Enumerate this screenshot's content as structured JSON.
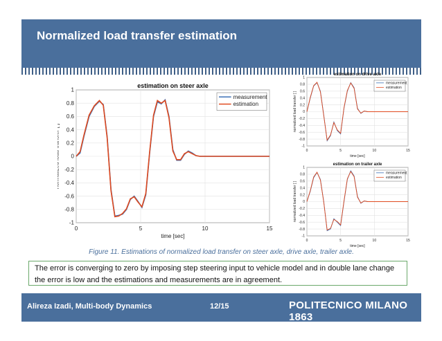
{
  "slide": {
    "title": "Normalized load transfer estimation",
    "caption": "Figure 11. Estimations of normalized load transfer on steer axle, drive axle, trailer axle.",
    "body_text": "The error is converging to zero by imposing step steering input to vehicle model and in double lane change the error is low and the estimations and measurements are in agreement.",
    "footer": {
      "author": "Alireza Izadi, Multi-body Dynamics",
      "page": "12/15",
      "logo": "POLITECNICO MILANO 1863"
    },
    "colors": {
      "header": "#4a6f9c",
      "measurement": "#3b6fb6",
      "estimation": "#e04a1f"
    }
  },
  "chart_data": [
    {
      "type": "line",
      "title": "estimation on steer axle",
      "xlabel": "time [sec]",
      "ylabel": "normalized load transfer [ ]",
      "xlim": [
        0,
        15
      ],
      "ylim": [
        -1,
        1
      ],
      "xticks": [
        0,
        5,
        10,
        15
      ],
      "yticks": [
        -1,
        -0.8,
        -0.6,
        -0.4,
        -0.2,
        0,
        0.2,
        0.4,
        0.6,
        0.8,
        1
      ],
      "grid": true,
      "legend": "top-right",
      "series": [
        {
          "name": "measurement",
          "x": [
            0,
            0.3,
            0.6,
            1,
            1.4,
            1.8,
            2.1,
            2.4,
            2.7,
            3,
            3.3,
            3.6,
            3.9,
            4.2,
            4.5,
            4.8,
            5.1,
            5.4,
            5.7,
            6,
            6.3,
            6.6,
            6.9,
            7.2,
            7.5,
            7.8,
            8.1,
            8.4,
            8.7,
            9,
            9.3,
            9.6,
            9.9,
            10.2,
            10.5,
            11,
            12,
            13,
            15
          ],
          "y": [
            0,
            0.05,
            0.3,
            0.6,
            0.75,
            0.83,
            0.78,
            0.3,
            -0.5,
            -0.9,
            -0.89,
            -0.87,
            -0.8,
            -0.65,
            -0.6,
            -0.68,
            -0.77,
            -0.58,
            0.05,
            0.6,
            0.82,
            0.79,
            0.85,
            0.6,
            0.1,
            -0.06,
            -0.06,
            0.03,
            0.08,
            0.05,
            0.01,
            0,
            0,
            0,
            0,
            0,
            0,
            0,
            0
          ]
        },
        {
          "name": "estimation",
          "x": [
            0,
            0.3,
            0.6,
            1,
            1.4,
            1.8,
            2.1,
            2.4,
            2.7,
            3,
            3.3,
            3.6,
            3.9,
            4.2,
            4.5,
            4.8,
            5.1,
            5.4,
            5.7,
            6,
            6.3,
            6.6,
            6.9,
            7.2,
            7.5,
            7.8,
            8.1,
            8.4,
            8.7,
            9,
            9.3,
            9.6,
            9.9,
            10.2,
            10.5,
            11,
            12,
            13,
            15
          ],
          "y": [
            0,
            0.07,
            0.32,
            0.62,
            0.76,
            0.84,
            0.77,
            0.28,
            -0.52,
            -0.91,
            -0.9,
            -0.86,
            -0.79,
            -0.64,
            -0.61,
            -0.69,
            -0.76,
            -0.56,
            0.07,
            0.62,
            0.84,
            0.8,
            0.84,
            0.58,
            0.08,
            -0.05,
            -0.05,
            0.04,
            0.07,
            0.04,
            0.01,
            0,
            0,
            0,
            0,
            0,
            0,
            0,
            0
          ]
        }
      ]
    },
    {
      "type": "line",
      "title": "estimation on drive axle",
      "xlabel": "time [sec]",
      "ylabel": "normalized load transfer [ ]",
      "xlim": [
        0,
        15
      ],
      "ylim": [
        -1,
        1
      ],
      "xticks": [
        0,
        5,
        10,
        15
      ],
      "yticks": [
        -1,
        -0.8,
        -0.6,
        -0.4,
        -0.2,
        0,
        0.2,
        0.4,
        0.6,
        0.8,
        1
      ],
      "legend": "top-right",
      "series": [
        {
          "name": "measurement",
          "x": [
            0,
            0.5,
            1,
            1.5,
            2,
            2.5,
            3,
            3.5,
            4,
            4.5,
            5,
            5.5,
            6,
            6.5,
            7,
            7.5,
            8,
            8.5,
            9,
            9.5,
            10,
            11,
            15
          ],
          "y": [
            0,
            0.4,
            0.75,
            0.85,
            0.6,
            -0.1,
            -0.85,
            -0.7,
            -0.3,
            -0.55,
            -0.65,
            0.1,
            0.6,
            0.85,
            0.7,
            0.1,
            -0.05,
            0.02,
            0,
            0,
            0,
            0,
            0
          ]
        },
        {
          "name": "estimation",
          "x": [
            0,
            0.5,
            1,
            1.5,
            2,
            2.5,
            3,
            3.5,
            4,
            4.5,
            5,
            5.5,
            6,
            6.5,
            7,
            7.5,
            8,
            8.5,
            9,
            9.5,
            10,
            11,
            15
          ],
          "y": [
            0,
            0.42,
            0.76,
            0.86,
            0.58,
            -0.12,
            -0.83,
            -0.68,
            -0.32,
            -0.53,
            -0.63,
            0.12,
            0.62,
            0.84,
            0.68,
            0.08,
            -0.04,
            0.02,
            0,
            0,
            0,
            0,
            0
          ]
        }
      ]
    },
    {
      "type": "line",
      "title": "estimation on trailer axle",
      "xlabel": "time [sec]",
      "ylabel": "normalized load transfer [ ]",
      "xlim": [
        0,
        15
      ],
      "ylim": [
        -1,
        1
      ],
      "xticks": [
        0,
        5,
        10,
        15
      ],
      "yticks": [
        -1,
        -0.8,
        -0.6,
        -0.4,
        -0.2,
        0,
        0.2,
        0.4,
        0.6,
        0.8,
        1
      ],
      "legend": "top-right",
      "series": [
        {
          "name": "measurement",
          "x": [
            0,
            0.5,
            1,
            1.5,
            2,
            2.5,
            3,
            3.5,
            4,
            4.5,
            5,
            5.5,
            6,
            6.5,
            7,
            7.5,
            8,
            8.5,
            9,
            9.5,
            10,
            11,
            15
          ],
          "y": [
            0,
            0.3,
            0.7,
            0.85,
            0.65,
            0,
            -0.85,
            -0.8,
            -0.5,
            -0.6,
            -0.7,
            0,
            0.65,
            0.9,
            0.75,
            0.15,
            -0.05,
            0.02,
            0,
            0,
            0,
            0,
            0
          ]
        },
        {
          "name": "estimation",
          "x": [
            0,
            0.5,
            1,
            1.5,
            2,
            2.5,
            3,
            3.5,
            4,
            4.5,
            5,
            5.5,
            6,
            6.5,
            7,
            7.5,
            8,
            8.5,
            9,
            9.5,
            10,
            11,
            15
          ],
          "y": [
            0,
            0.32,
            0.72,
            0.86,
            0.63,
            -0.02,
            -0.83,
            -0.78,
            -0.52,
            -0.58,
            -0.68,
            0.02,
            0.67,
            0.88,
            0.73,
            0.13,
            -0.04,
            0.02,
            0,
            0,
            0,
            0,
            0
          ]
        }
      ]
    }
  ]
}
